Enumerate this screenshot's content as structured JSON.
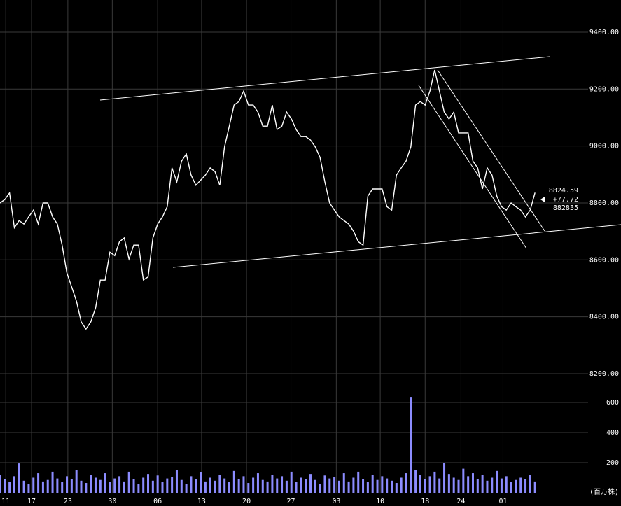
{
  "chart_data": [
    {
      "type": "line",
      "color": "#ffffff",
      "grid": true,
      "xlim": [
        0,
        130
      ],
      "ylim": [
        8136,
        9513
      ],
      "yticks": [
        {
          "value": 8200,
          "label": "8200.00"
        },
        {
          "value": 8400,
          "label": "8400.00"
        },
        {
          "value": 8600,
          "label": "8600.00"
        },
        {
          "value": 8800,
          "label": "8800.00"
        },
        {
          "value": 9000,
          "label": "9000.00"
        },
        {
          "value": 9200,
          "label": "9200.00"
        },
        {
          "value": 9400,
          "label": "9400.00"
        }
      ],
      "annotations": [
        "8824.59",
        "+77.72",
        "882835"
      ],
      "x": [
        0,
        1,
        2,
        3,
        4,
        5,
        6,
        7,
        8,
        9,
        10,
        11,
        12,
        13,
        14,
        15,
        16,
        17,
        18,
        19,
        20,
        21,
        22,
        23,
        24,
        25,
        26,
        27,
        28,
        29,
        30,
        31,
        32,
        33,
        34,
        35,
        36,
        37,
        38,
        39,
        40,
        41,
        42,
        43,
        44,
        45,
        46,
        47,
        48,
        49,
        50,
        51,
        52,
        53,
        54,
        55,
        56,
        57,
        58,
        59,
        60,
        61,
        62,
        63,
        64,
        65,
        66,
        67,
        68,
        69,
        70,
        71,
        72,
        73,
        74,
        75,
        76,
        77,
        78,
        79,
        80,
        81,
        82,
        83,
        84,
        85,
        86,
        87,
        88,
        89,
        90,
        91,
        92,
        93,
        94,
        95,
        96,
        97,
        98,
        99,
        100,
        101,
        102,
        103,
        104,
        105,
        106,
        107,
        108,
        109,
        110,
        111,
        112
      ],
      "values": [
        8800,
        8812,
        8835,
        8713,
        8738,
        8726,
        8751,
        8775,
        8726,
        8800,
        8800,
        8751,
        8726,
        8652,
        8554,
        8505,
        8455,
        8382,
        8357,
        8382,
        8431,
        8529,
        8529,
        8627,
        8615,
        8664,
        8677,
        8603,
        8652,
        8652,
        8530,
        8540,
        8677,
        8726,
        8751,
        8787,
        8923,
        8874,
        8947,
        8972,
        8898,
        8862,
        8880,
        8898,
        8923,
        8910,
        8862,
        8997,
        9070,
        9144,
        9156,
        9193,
        9144,
        9144,
        9119,
        9070,
        9070,
        9144,
        9058,
        9070,
        9119,
        9095,
        9058,
        9033,
        9033,
        9021,
        8997,
        8960,
        8874,
        8800,
        8775,
        8751,
        8738,
        8726,
        8701,
        8664,
        8652,
        8824,
        8849,
        8849,
        8849,
        8787,
        8775,
        8898,
        8923,
        8947,
        8997,
        9144,
        9156,
        9144,
        9193,
        9267,
        9193,
        9119,
        9095,
        9119,
        9046,
        9046,
        9046,
        8947,
        8923,
        8849,
        8923,
        8898,
        8824,
        8787,
        8775,
        8800,
        8787,
        8775,
        8751,
        8775,
        8836
      ]
    },
    {
      "type": "bar",
      "color": "#8c8cff",
      "grid": true,
      "xlim": [
        0,
        130
      ],
      "ylim": [
        0,
        670
      ],
      "ylabel": "(百万株)",
      "yticks": [
        200,
        400,
        600
      ],
      "xticks": [
        {
          "value": 1.2,
          "label": "11"
        },
        {
          "value": 6.6,
          "label": "17"
        },
        {
          "value": 14.2,
          "label": "23"
        },
        {
          "value": 23.5,
          "label": "30"
        },
        {
          "value": 33,
          "label": "06"
        },
        {
          "value": 42.2,
          "label": "13"
        },
        {
          "value": 51.6,
          "label": "20"
        },
        {
          "value": 60.9,
          "label": "27"
        },
        {
          "value": 70.4,
          "label": "03"
        },
        {
          "value": 79.6,
          "label": "10"
        },
        {
          "value": 89,
          "label": "18"
        },
        {
          "value": 96.5,
          "label": "24"
        },
        {
          "value": 105.3,
          "label": "01"
        }
      ],
      "x": [
        0,
        1,
        2,
        3,
        4,
        5,
        6,
        7,
        8,
        9,
        10,
        11,
        12,
        13,
        14,
        15,
        16,
        17,
        18,
        19,
        20,
        21,
        22,
        23,
        24,
        25,
        26,
        27,
        28,
        29,
        30,
        31,
        32,
        33,
        34,
        35,
        36,
        37,
        38,
        39,
        40,
        41,
        42,
        43,
        44,
        45,
        46,
        47,
        48,
        49,
        50,
        51,
        52,
        53,
        54,
        55,
        56,
        57,
        58,
        59,
        60,
        61,
        62,
        63,
        64,
        65,
        66,
        67,
        68,
        69,
        70,
        71,
        72,
        73,
        74,
        75,
        76,
        77,
        78,
        79,
        80,
        81,
        82,
        83,
        84,
        85,
        86,
        87,
        88,
        89,
        90,
        91,
        92,
        93,
        94,
        95,
        96,
        97,
        98,
        99,
        100,
        101,
        102,
        103,
        104,
        105,
        106,
        107,
        108,
        109,
        110,
        111,
        112
      ],
      "values": [
        120,
        90,
        70,
        110,
        195,
        80,
        60,
        100,
        130,
        75,
        85,
        140,
        95,
        70,
        110,
        90,
        150,
        80,
        65,
        120,
        100,
        85,
        130,
        70,
        95,
        110,
        75,
        140,
        90,
        60,
        100,
        125,
        80,
        115,
        70,
        95,
        105,
        150,
        85,
        60,
        110,
        90,
        135,
        75,
        100,
        80,
        120,
        95,
        70,
        145,
        90,
        110,
        65,
        100,
        130,
        85,
        75,
        120,
        95,
        110,
        80,
        140,
        70,
        100,
        90,
        125,
        85,
        60,
        115,
        95,
        105,
        80,
        130,
        75,
        100,
        140,
        90,
        70,
        120,
        85,
        110,
        95,
        80,
        65,
        100,
        130,
        637,
        150,
        120,
        90,
        110,
        140,
        95,
        200,
        125,
        100,
        85,
        160,
        110,
        130,
        90,
        120,
        80,
        100,
        145,
        95,
        110,
        70,
        85,
        100,
        90,
        120,
        75
      ]
    }
  ]
}
